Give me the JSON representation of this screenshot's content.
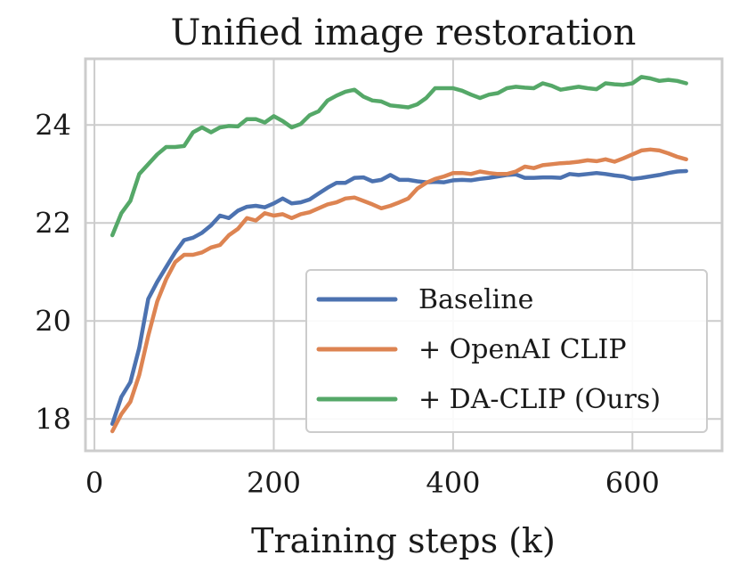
{
  "chart_data": {
    "type": "line",
    "title": "Unified image restoration",
    "xlabel": "Training steps (k)",
    "ylabel": "",
    "xlim": [
      -10,
      700
    ],
    "ylim": [
      17.35,
      25.35
    ],
    "xticks": [
      0,
      200,
      400,
      600
    ],
    "yticks": [
      18,
      20,
      22,
      24
    ],
    "grid": true,
    "legend_position": "lower-right",
    "series": [
      {
        "name": "Baseline",
        "color": "#4c72b0",
        "x": [
          20,
          30,
          40,
          50,
          60,
          70,
          80,
          90,
          100,
          110,
          120,
          130,
          140,
          150,
          160,
          170,
          180,
          190,
          200,
          210,
          220,
          230,
          240,
          250,
          260,
          270,
          280,
          290,
          300,
          310,
          320,
          330,
          340,
          350,
          360,
          370,
          380,
          390,
          400,
          410,
          420,
          430,
          440,
          450,
          460,
          470,
          480,
          490,
          500,
          510,
          520,
          530,
          540,
          550,
          560,
          570,
          580,
          590,
          600,
          610,
          620,
          630,
          640,
          650,
          660
        ],
        "y": [
          17.9,
          18.45,
          18.75,
          19.45,
          20.45,
          20.8,
          21.1,
          21.4,
          21.65,
          21.7,
          21.8,
          21.95,
          22.15,
          22.1,
          22.25,
          22.33,
          22.35,
          22.32,
          22.4,
          22.5,
          22.4,
          22.42,
          22.48,
          22.6,
          22.72,
          22.82,
          22.82,
          22.92,
          22.93,
          22.85,
          22.88,
          22.98,
          22.88,
          22.88,
          22.85,
          22.83,
          22.84,
          22.83,
          22.87,
          22.88,
          22.87,
          22.9,
          22.92,
          22.95,
          22.98,
          22.99,
          22.92,
          22.92,
          22.93,
          22.93,
          22.92,
          23.0,
          22.98,
          23.0,
          23.02,
          23.0,
          22.97,
          22.95,
          22.9,
          22.92,
          22.95,
          22.98,
          23.02,
          23.05,
          23.06
        ]
      },
      {
        "name": "+ OpenAI CLIP",
        "color": "#dd8452",
        "x": [
          20,
          30,
          40,
          50,
          60,
          70,
          80,
          90,
          100,
          110,
          120,
          130,
          140,
          150,
          160,
          170,
          180,
          190,
          200,
          210,
          220,
          230,
          240,
          250,
          260,
          270,
          280,
          290,
          300,
          310,
          320,
          330,
          340,
          350,
          360,
          370,
          380,
          390,
          400,
          410,
          420,
          430,
          440,
          450,
          460,
          470,
          480,
          490,
          500,
          510,
          520,
          530,
          540,
          550,
          560,
          570,
          580,
          590,
          600,
          610,
          620,
          630,
          640,
          650,
          660
        ],
        "y": [
          17.75,
          18.1,
          18.35,
          18.9,
          19.7,
          20.4,
          20.85,
          21.2,
          21.35,
          21.35,
          21.4,
          21.5,
          21.55,
          21.75,
          21.88,
          22.1,
          22.05,
          22.2,
          22.15,
          22.18,
          22.1,
          22.18,
          22.22,
          22.3,
          22.38,
          22.42,
          22.5,
          22.52,
          22.45,
          22.38,
          22.3,
          22.35,
          22.42,
          22.5,
          22.7,
          22.82,
          22.9,
          22.95,
          23.02,
          23.02,
          23.0,
          23.05,
          23.02,
          23.0,
          23.0,
          23.05,
          23.15,
          23.12,
          23.18,
          23.2,
          23.22,
          23.23,
          23.25,
          23.28,
          23.26,
          23.3,
          23.25,
          23.32,
          23.4,
          23.48,
          23.5,
          23.48,
          23.42,
          23.35,
          23.3
        ]
      },
      {
        "name": "+ DA-CLIP (Ours)",
        "color": "#55a868",
        "x": [
          20,
          30,
          40,
          50,
          60,
          70,
          80,
          90,
          100,
          110,
          120,
          130,
          140,
          150,
          160,
          170,
          180,
          190,
          200,
          210,
          220,
          230,
          240,
          250,
          260,
          270,
          280,
          290,
          300,
          310,
          320,
          330,
          340,
          350,
          360,
          370,
          380,
          390,
          400,
          410,
          420,
          430,
          440,
          450,
          460,
          470,
          480,
          490,
          500,
          510,
          520,
          530,
          540,
          550,
          560,
          570,
          580,
          590,
          600,
          610,
          620,
          630,
          640,
          650,
          660
        ],
        "y": [
          21.75,
          22.2,
          22.45,
          23.0,
          23.2,
          23.4,
          23.55,
          23.55,
          23.57,
          23.85,
          23.95,
          23.85,
          23.95,
          23.98,
          23.97,
          24.12,
          24.12,
          24.05,
          24.18,
          24.08,
          23.95,
          24.02,
          24.2,
          24.28,
          24.5,
          24.6,
          24.68,
          24.72,
          24.58,
          24.5,
          24.48,
          24.4,
          24.38,
          24.36,
          24.42,
          24.55,
          24.75,
          24.75,
          24.75,
          24.7,
          24.62,
          24.55,
          24.62,
          24.65,
          24.75,
          24.78,
          24.76,
          24.75,
          24.85,
          24.8,
          24.72,
          24.75,
          24.78,
          24.75,
          24.73,
          24.85,
          24.83,
          24.82,
          24.85,
          24.98,
          24.95,
          24.9,
          24.92,
          24.9,
          24.85
        ]
      }
    ]
  }
}
